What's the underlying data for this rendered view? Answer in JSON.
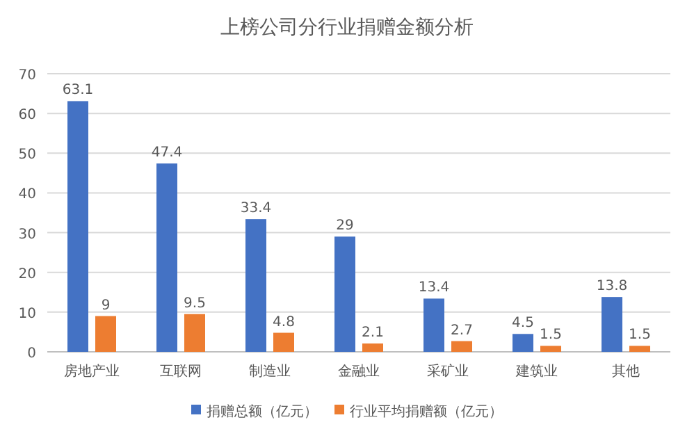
{
  "chart_data": {
    "type": "bar",
    "title": "上榜公司分行业捐赠金额分析",
    "categories": [
      "房地产业",
      "互联网",
      "制造业",
      "金融业",
      "采矿业",
      "建筑业",
      "其他"
    ],
    "series": [
      {
        "name": "捐赠总额（亿元）",
        "color": "#4472c4",
        "values": [
          63.1,
          47.4,
          33.4,
          29,
          13.4,
          4.5,
          13.8
        ]
      },
      {
        "name": "行业平均捐赠额（亿元）",
        "color": "#ed7d31",
        "values": [
          9,
          9.5,
          4.8,
          2.1,
          2.7,
          1.5,
          1.5
        ]
      }
    ],
    "ylim": [
      0,
      70
    ],
    "yticks": [
      0,
      10,
      20,
      30,
      40,
      50,
      60,
      70
    ],
    "grid": "y",
    "legend": "bottom",
    "data_labels": true
  }
}
